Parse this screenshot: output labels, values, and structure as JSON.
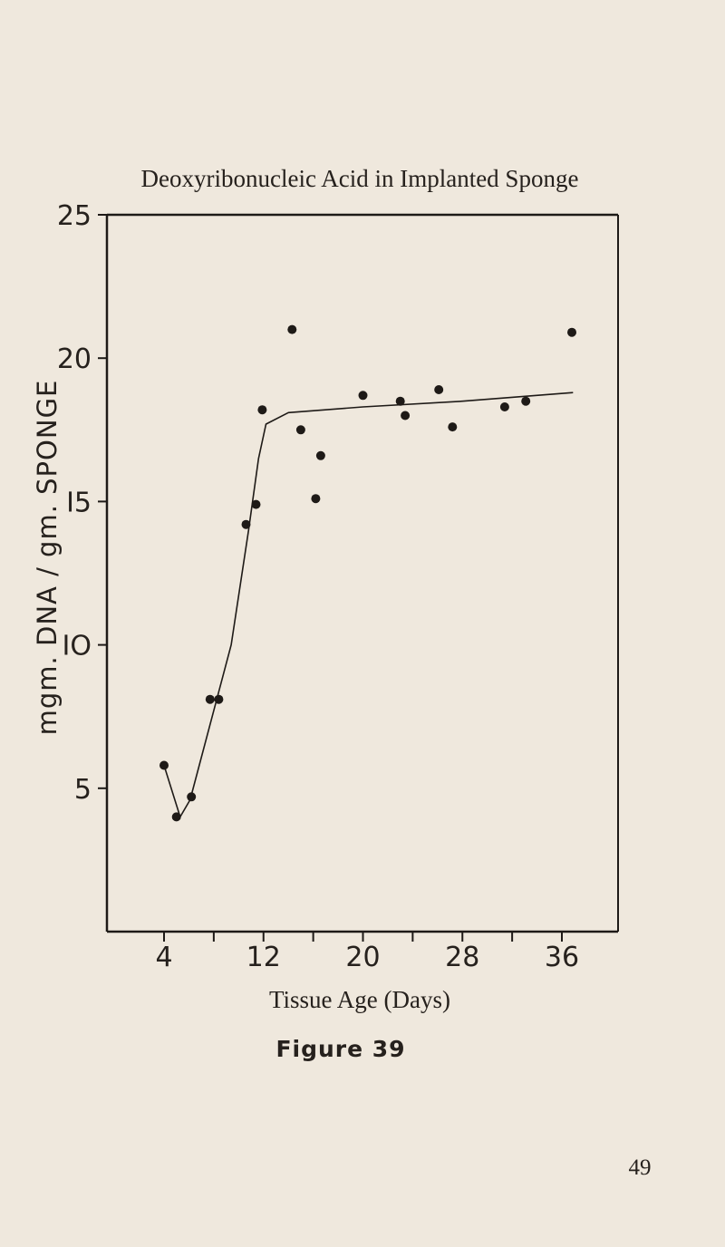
{
  "page_number": "49",
  "figure_caption": "Figure 39",
  "chart_data": {
    "type": "scatter",
    "title": "Deoxyribonucleic Acid in Implanted Sponge",
    "xlabel": "Tissue Age (Days)",
    "ylabel": "mgm. DNA / gm. SPONGE",
    "xlim": [
      1,
      38
    ],
    "ylim": [
      0,
      25
    ],
    "x_ticks": [
      4,
      8,
      12,
      16,
      20,
      24,
      28,
      32,
      36
    ],
    "x_tick_labels": [
      "4",
      "12",
      "20",
      "28",
      "36"
    ],
    "x_tick_label_values": [
      4,
      12,
      20,
      28,
      36
    ],
    "y_ticks": [
      5,
      10,
      15,
      20,
      25
    ],
    "y_tick_labels": [
      "5",
      "IO",
      "I5",
      "20",
      "25"
    ],
    "grid": false,
    "legend": "none",
    "colors": {
      "ink": "#1e1a17",
      "paper": "#efe8dd"
    },
    "series": [
      {
        "points": [
          {
            "x": 4.0,
            "y": 5.8
          },
          {
            "x": 5.0,
            "y": 4.0
          },
          {
            "x": 6.2,
            "y": 4.7
          },
          {
            "x": 7.7,
            "y": 8.1
          },
          {
            "x": 8.4,
            "y": 8.1
          },
          {
            "x": 10.6,
            "y": 14.2
          },
          {
            "x": 11.4,
            "y": 14.9
          },
          {
            "x": 11.9,
            "y": 18.2
          },
          {
            "x": 14.3,
            "y": 21.0
          },
          {
            "x": 15.0,
            "y": 17.5
          },
          {
            "x": 16.6,
            "y": 16.6
          },
          {
            "x": 16.2,
            "y": 15.1
          },
          {
            "x": 20.0,
            "y": 18.7
          },
          {
            "x": 23.0,
            "y": 18.5
          },
          {
            "x": 23.4,
            "y": 18.0
          },
          {
            "x": 26.1,
            "y": 18.9
          },
          {
            "x": 27.2,
            "y": 17.6
          },
          {
            "x": 31.4,
            "y": 18.3
          },
          {
            "x": 33.1,
            "y": 18.5
          },
          {
            "x": 36.8,
            "y": 20.9
          }
        ],
        "fit_curve": [
          {
            "x": 4.0,
            "y": 5.8
          },
          {
            "x": 5.3,
            "y": 4.0
          },
          {
            "x": 6.1,
            "y": 4.6
          },
          {
            "x": 9.4,
            "y": 10.0
          },
          {
            "x": 10.8,
            "y": 14.0
          },
          {
            "x": 11.6,
            "y": 16.5
          },
          {
            "x": 12.2,
            "y": 17.7
          },
          {
            "x": 14.0,
            "y": 18.1
          },
          {
            "x": 20.0,
            "y": 18.3
          },
          {
            "x": 28.0,
            "y": 18.5
          },
          {
            "x": 36.9,
            "y": 18.8
          }
        ]
      }
    ]
  }
}
